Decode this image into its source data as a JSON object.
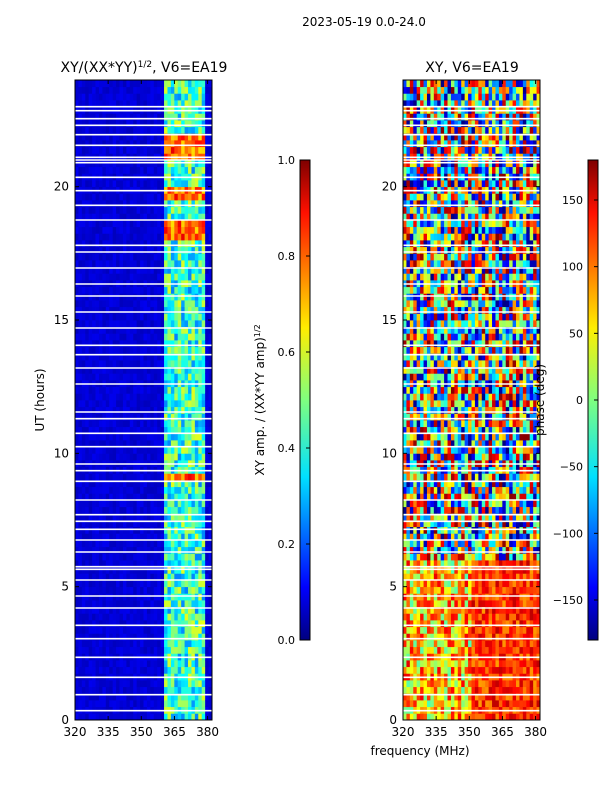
{
  "suptitle": "2023-05-19 0.0-24.0",
  "xlabel_shared": "frequency (MHz)",
  "colors": {
    "jet": [
      "#00007f",
      "#0000ff",
      "#007fff",
      "#00ffff",
      "#7fff7f",
      "#ffff00",
      "#ff7f00",
      "#ff0000",
      "#7f0000"
    ],
    "gap": "#ffffff",
    "axis": "#000000"
  },
  "chart_data": [
    {
      "type": "heatmap",
      "title": "XY/(XX*YY)",
      "title_sup": "1/2",
      "title_suffix": ", V6=EA19",
      "xlabel": "",
      "ylabel": "UT (hours)",
      "xlim": [
        320,
        382
      ],
      "ylim": [
        0,
        24
      ],
      "x_ticks": [
        320,
        335,
        350,
        365,
        380
      ],
      "y_ticks": [
        0,
        5,
        10,
        15,
        20
      ],
      "colorbar": {
        "label_main": "XY amp. / (XX*YY amp)",
        "label_sup": "1/2",
        "range": [
          0.0,
          1.0
        ],
        "ticks": [
          "0.0",
          "0.2",
          "0.4",
          "0.6",
          "0.8",
          "1.0"
        ]
      },
      "description": "Mostly low amplitude (~0.05) across band; elevated amplitude (0.3-0.7) in channels ~360-378 MHz; peaks near 21-22 UT around 365-378 MHz",
      "bright_band_mhz": [
        360,
        378
      ],
      "peak_hours": [
        [
          21.0,
          22.0
        ],
        [
          19.5,
          20.0
        ],
        [
          18.0,
          18.6
        ],
        [
          8.8,
          9.2
        ]
      ]
    },
    {
      "type": "heatmap",
      "title": "XY, V6=EA19",
      "xlabel": "",
      "ylabel": "",
      "xlim": [
        320,
        382
      ],
      "ylim": [
        0,
        24
      ],
      "x_ticks": [
        320,
        335,
        350,
        365,
        380
      ],
      "y_ticks": [
        0,
        5,
        10,
        15,
        20
      ],
      "colorbar": {
        "label_main": "phase (deg)",
        "range": [
          -180,
          180
        ],
        "ticks": [
          "−150",
          "−100",
          "−50",
          "0",
          "50",
          "100",
          "150"
        ]
      },
      "description": "Phase noisy across full range -180..180 deg, with red/orange coherent patches at 0-6 UT and 350-380 MHz"
    }
  ]
}
